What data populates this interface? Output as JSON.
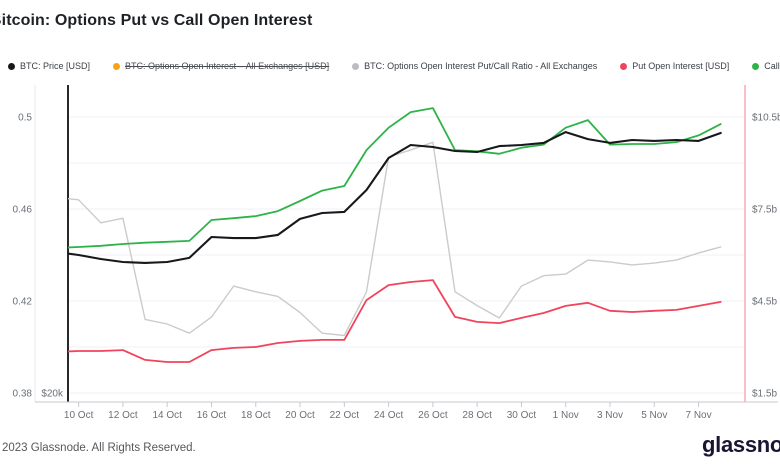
{
  "header": {
    "title": "Bitcoin: Options Put vs Call Open Interest"
  },
  "legend": {
    "items": [
      {
        "label": "BTC: Price [USD]",
        "color": "#16181c",
        "disabled": false
      },
      {
        "label": "BTC: Options Open Interest – All Exchanges [USD]",
        "color": "#f7a21b",
        "disabled": true
      },
      {
        "label": "BTC: Options Open Interest Put/Call Ratio - All Exchanges",
        "color": "#b9bdc2",
        "disabled": false
      },
      {
        "label": "Put Open Interest [USD]",
        "color": "#f0445c",
        "disabled": false
      },
      {
        "label": "Call Open Interest [USD]",
        "color": "#2eb348",
        "disabled": false
      }
    ]
  },
  "chart_data": {
    "type": "line",
    "x": [
      "9 Oct",
      "10 Oct",
      "11 Oct",
      "12 Oct",
      "13 Oct",
      "14 Oct",
      "15 Oct",
      "16 Oct",
      "17 Oct",
      "18 Oct",
      "19 Oct",
      "20 Oct",
      "21 Oct",
      "22 Oct",
      "23 Oct",
      "24 Oct",
      "25 Oct",
      "26 Oct",
      "27 Oct",
      "28 Oct",
      "29 Oct",
      "30 Oct",
      "31 Oct",
      "1 Nov",
      "2 Nov",
      "3 Nov",
      "4 Nov",
      "5 Nov",
      "6 Nov",
      "7 Nov",
      "8 Nov"
    ],
    "x_tick_labels": [
      "10 Oct",
      "12 Oct",
      "14 Oct",
      "16 Oct",
      "18 Oct",
      "20 Oct",
      "22 Oct",
      "24 Oct",
      "26 Oct",
      "28 Oct",
      "30 Oct",
      "1 Nov",
      "3 Nov",
      "5 Nov",
      "7 Nov"
    ],
    "axes": {
      "left_ratio": {
        "range": [
          0.38,
          0.5
        ],
        "ticks": [
          {
            "value": 0.5,
            "label": "0.5"
          },
          {
            "value": 0.46,
            "label": "0.46"
          },
          {
            "value": 0.42,
            "label": "0.42"
          },
          {
            "value": 0.38,
            "label": "0.38"
          }
        ]
      },
      "left_price": {
        "ticks": [
          {
            "value": 20,
            "label": "$20k"
          }
        ]
      },
      "right_usd": {
        "range_billions": [
          1.5,
          10.5
        ],
        "ticks": [
          {
            "value": 10.5,
            "label": "$10.5b"
          },
          {
            "value": 7.5,
            "label": "$7.5b"
          },
          {
            "value": 4.5,
            "label": "$4.5b"
          },
          {
            "value": 1.5,
            "label": "$1.5b"
          }
        ]
      }
    },
    "series": [
      {
        "name": "BTC: Options Open Interest Put/Call Ratio - All Exchanges",
        "axis": "ratio",
        "color": "#cbcbcb",
        "width": 1.4,
        "values": [
          0.465,
          0.464,
          0.454,
          0.456,
          0.412,
          0.41,
          0.406,
          0.413,
          0.4265,
          0.424,
          0.422,
          0.415,
          0.406,
          0.405,
          0.424,
          0.4826,
          0.4857,
          0.489,
          0.424,
          0.418,
          0.4126,
          0.4265,
          0.431,
          0.4317,
          0.4378,
          0.437,
          0.4357,
          0.4365,
          0.4378,
          0.4409,
          0.4435
        ]
      },
      {
        "name": "Call Open Interest [USD]",
        "axis": "usd_billions",
        "color": "#2eb348",
        "width": 1.8,
        "values": [
          6.23,
          6.26,
          6.3,
          6.36,
          6.4,
          6.43,
          6.46,
          7.14,
          7.2,
          7.27,
          7.43,
          7.76,
          8.1,
          8.25,
          9.42,
          10.15,
          10.66,
          10.79,
          9.42,
          9.38,
          9.3,
          9.5,
          9.6,
          10.15,
          10.4,
          9.6,
          9.62,
          9.62,
          9.68,
          9.9,
          10.27
        ]
      },
      {
        "name": "Put Open Interest [USD]",
        "axis": "usd_billions",
        "color": "#f0445c",
        "width": 1.8,
        "values": [
          2.84,
          2.87,
          2.87,
          2.9,
          2.58,
          2.51,
          2.51,
          2.9,
          2.97,
          3.0,
          3.13,
          3.2,
          3.23,
          3.23,
          4.53,
          5.02,
          5.12,
          5.18,
          3.98,
          3.82,
          3.78,
          3.95,
          4.11,
          4.34,
          4.44,
          4.18,
          4.14,
          4.18,
          4.21,
          4.34,
          4.47
        ]
      },
      {
        "name": "BTC: Price [USD]",
        "axis": "price_usd_thousands",
        "color": "#16181c",
        "width": 2.1,
        "values": [
          27.66,
          27.5,
          27.28,
          27.12,
          27.07,
          27.12,
          27.34,
          28.48,
          28.42,
          28.42,
          28.59,
          29.46,
          29.78,
          29.84,
          31.03,
          32.77,
          33.48,
          33.37,
          33.15,
          33.1,
          33.42,
          33.48,
          33.59,
          34.18,
          33.8,
          33.59,
          33.75,
          33.7,
          33.75,
          33.7,
          34.13
        ]
      }
    ]
  },
  "footer": {
    "copyright": "2023 Glassnode. All Rights Reserved.",
    "logo_text": "glassnode"
  }
}
